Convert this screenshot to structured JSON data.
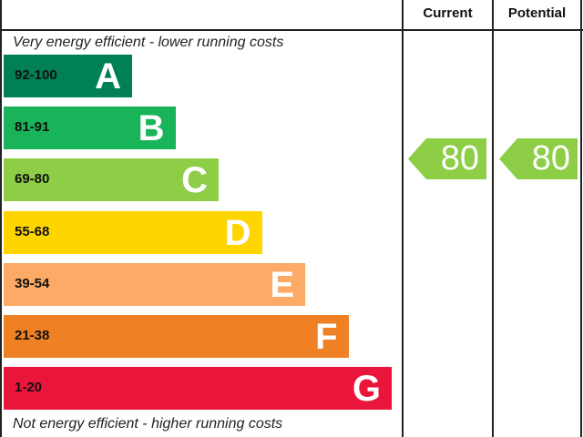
{
  "chart_data": {
    "type": "bar",
    "columns": [
      "Current",
      "Potential"
    ],
    "top_note": "Very energy efficient - lower running costs",
    "bottom_note": "Not energy efficient - higher running costs",
    "bands": [
      {
        "range": "92-100",
        "letter": "A",
        "color": "#008054"
      },
      {
        "range": "81-91",
        "letter": "B",
        "color": "#19b459"
      },
      {
        "range": "69-80",
        "letter": "C",
        "color": "#8dce46"
      },
      {
        "range": "55-68",
        "letter": "D",
        "color": "#ffd500"
      },
      {
        "range": "39-54",
        "letter": "E",
        "color": "#fcaa65"
      },
      {
        "range": "21-38",
        "letter": "F",
        "color": "#ef8023"
      },
      {
        "range": "1-20",
        "letter": "G",
        "color": "#e9153b"
      }
    ],
    "current": {
      "value": "80",
      "band": "C",
      "color": "#8dce46"
    },
    "potential": {
      "value": "80",
      "band": "C",
      "color": "#8dce46"
    }
  }
}
